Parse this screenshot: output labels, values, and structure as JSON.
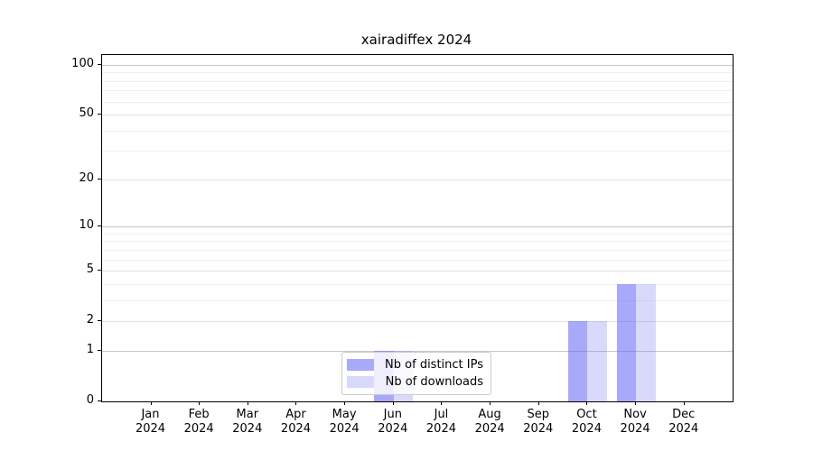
{
  "title": "xairadiffex 2024",
  "chart_data": {
    "type": "bar",
    "title": "xairadiffex 2024",
    "categories": [
      "Jan",
      "Feb",
      "Mar",
      "Apr",
      "May",
      "Jun",
      "Jul",
      "Aug",
      "Sep",
      "Oct",
      "Nov",
      "Dec"
    ],
    "category_sublabel": "2024",
    "series": [
      {
        "name": "Nb of distinct IPs",
        "color": "rgba(102,102,245,0.56)",
        "values": [
          0,
          0,
          0,
          0,
          0,
          1,
          0,
          0,
          0,
          2,
          4,
          0
        ]
      },
      {
        "name": "Nb of downloads",
        "color": "rgba(102,102,245,0.25)",
        "values": [
          0,
          0,
          0,
          0,
          0,
          1,
          0,
          0,
          0,
          2,
          4,
          0
        ]
      }
    ],
    "xlabel": "",
    "ylabel": "",
    "yscale": "log1p",
    "ylim": [
      0,
      115
    ],
    "yticks_major": [
      0,
      1,
      2,
      5,
      10,
      20,
      50,
      100
    ],
    "yticks_minor": [
      3,
      4,
      6,
      7,
      8,
      9,
      30,
      40,
      60,
      70,
      80,
      90
    ],
    "grid": "horizontal",
    "legend_position": "lower center inside"
  }
}
